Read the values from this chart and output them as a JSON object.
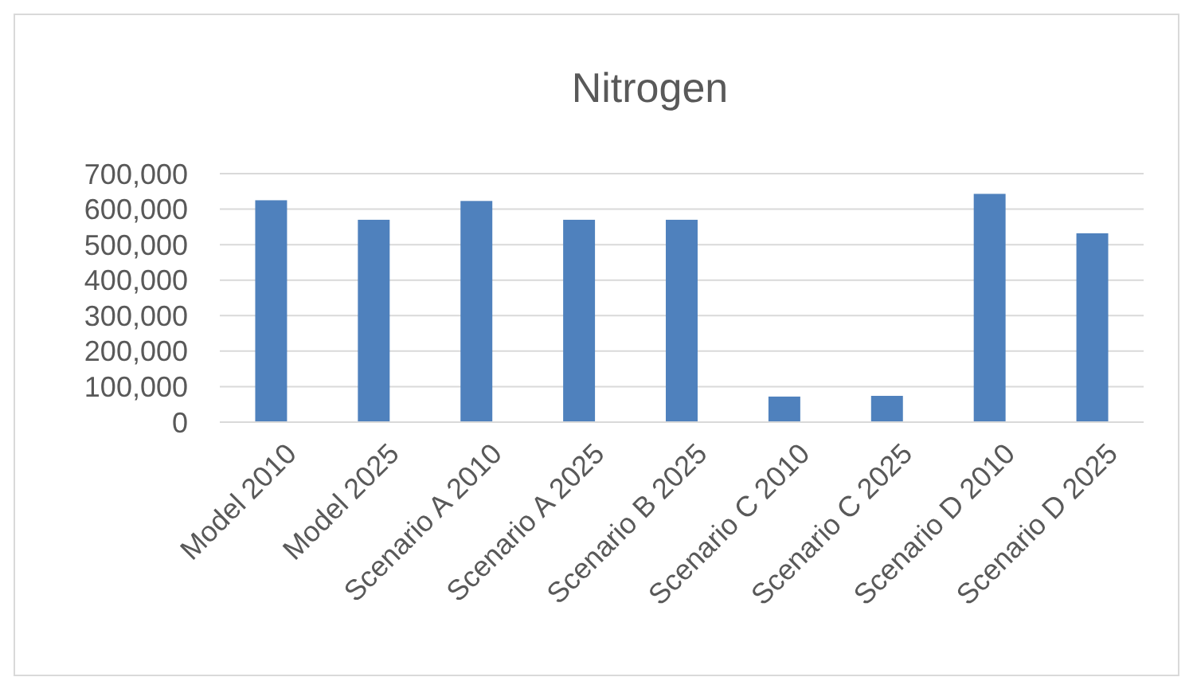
{
  "chart_data": {
    "type": "bar",
    "title": "Nitrogen",
    "categories": [
      "Model 2010",
      "Model 2025",
      "Scenario A 2010",
      "Scenario A 2025",
      "Scenario B 2025",
      "Scenario C 2010",
      "Scenario C 2025",
      "Scenario D 2010",
      "Scenario D 2025"
    ],
    "values": [
      625000,
      570000,
      623000,
      570000,
      570000,
      72000,
      74000,
      643000,
      532000
    ],
    "color": "#4f81bd",
    "ylim": [
      0,
      700000
    ],
    "yticks": [
      {
        "value": 0,
        "label": "0"
      },
      {
        "value": 100000,
        "label": "100,000"
      },
      {
        "value": 200000,
        "label": "200,000"
      },
      {
        "value": 300000,
        "label": "300,000"
      },
      {
        "value": 400000,
        "label": "400,000"
      },
      {
        "value": 500000,
        "label": "500,000"
      },
      {
        "value": 600000,
        "label": "600,000"
      },
      {
        "value": 700000,
        "label": "700,000"
      }
    ],
    "grid": "y"
  }
}
